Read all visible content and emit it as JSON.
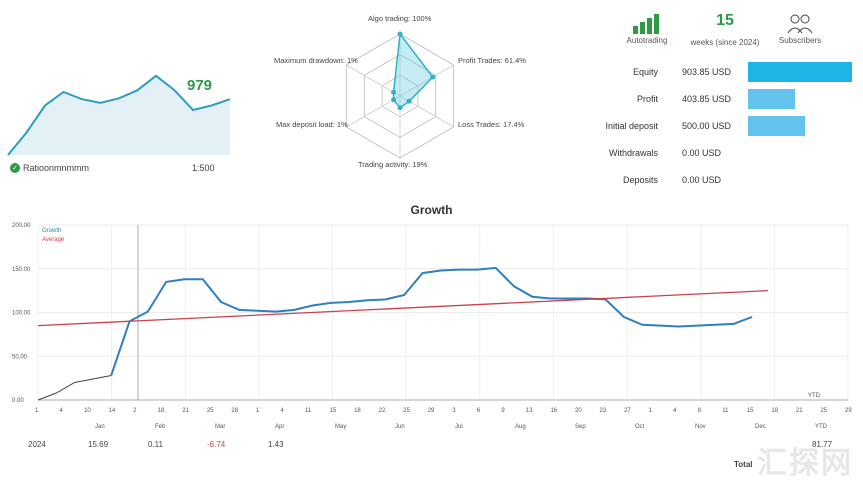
{
  "sparkline": {
    "value": "979",
    "footer_left": "Ratioonmnmmm",
    "footer_right": "1:500",
    "points": [
      0,
      0.25,
      0.55,
      0.7,
      0.62,
      0.58,
      0.63,
      0.72,
      0.88,
      0.72,
      0.5,
      0.55,
      0.62
    ]
  },
  "radar": {
    "labels": [
      {
        "text": "Algo trading: 100%"
      },
      {
        "text": "Profit Trades: 61.4%"
      },
      {
        "text": "Loss Trades: 17.4%"
      },
      {
        "text": "Trading activity: 19%"
      },
      {
        "text": "Max deposit load: 1%"
      },
      {
        "text": "Maximum drawdown: 1%"
      }
    ],
    "values": [
      1.0,
      0.61,
      0.17,
      0.19,
      0.01,
      0.01
    ]
  },
  "stats_header": {
    "item1_label": "Autotrading",
    "item2_value": "15",
    "item2_label": "weeks (since 2024)",
    "item3_label": "Subscribers"
  },
  "stats": [
    {
      "name": "Equity",
      "value": "903.85 USD",
      "fill": 1.0
    },
    {
      "name": "Profit",
      "value": "403.85 USD",
      "fill": 0.45
    },
    {
      "name": "Initial deposit",
      "value": "500.00 USD",
      "fill": 0.55
    },
    {
      "name": "Withdrawals",
      "value": "0.00 USD",
      "fill": 0
    },
    {
      "name": "Deposits",
      "value": "0.00 USD",
      "fill": 0
    }
  ],
  "chart_data": {
    "type": "line",
    "title": "Growth",
    "ylim": [
      0,
      200
    ],
    "yticks": [
      "0.00",
      "50.00",
      "100.00",
      "150.00",
      "200.00"
    ],
    "xticks": [
      "1",
      "4",
      "10",
      "14",
      "2",
      "18",
      "21",
      "25",
      "28",
      "1",
      "4",
      "11",
      "15",
      "18",
      "22",
      "25",
      "29",
      "3",
      "6",
      "9",
      "13",
      "16",
      "20",
      "23",
      "27",
      "1",
      "4",
      "8",
      "11",
      "15",
      "18",
      "21",
      "25",
      "29"
    ],
    "months": [
      "Jan",
      "Feb",
      "Mar",
      "Apr",
      "May",
      "Jun",
      "Jul",
      "Aug",
      "Sep",
      "Oct",
      "Nov",
      "Dec",
      "YTD"
    ],
    "series": [
      {
        "name": "Growth",
        "color": "#2f7fc1",
        "values": [
          0,
          8,
          20,
          24,
          28,
          90,
          101,
          135,
          138,
          138,
          112,
          103,
          102,
          101,
          103,
          108,
          111,
          112,
          114,
          115,
          120,
          145,
          148,
          149,
          149,
          151,
          130,
          118,
          116,
          116,
          116,
          115,
          95,
          86,
          85,
          84,
          85,
          86,
          87,
          95
        ]
      },
      {
        "name": "Average",
        "color": "#c9424a",
        "values": [
          85,
          125
        ]
      }
    ]
  },
  "bottom": {
    "year": "2024",
    "v1": "15.69",
    "v2": "0.11",
    "v3": "-6.74",
    "v4": "1.43",
    "total_label": "Total",
    "total_value": "81.77",
    "ytd": "YTD"
  },
  "watermark": "汇探网"
}
